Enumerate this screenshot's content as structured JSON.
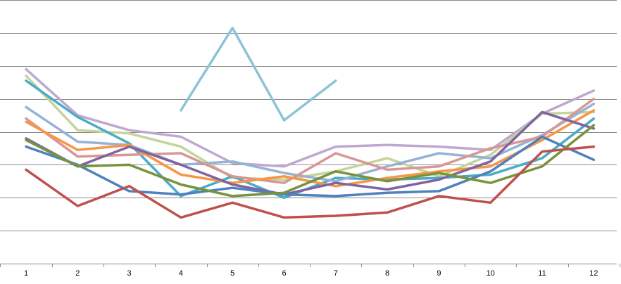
{
  "chart_data": {
    "type": "line",
    "title": "",
    "xlabel": "",
    "ylabel": "",
    "x": [
      "1",
      "2",
      "3",
      "4",
      "5",
      "6",
      "7",
      "8",
      "9",
      "10",
      "11",
      "12"
    ],
    "ylim": [
      0,
      8
    ],
    "grid": true,
    "legend": "none",
    "series": [
      {
        "color": "#bfa8cf",
        "values": [
          5.9,
          4.5,
          4.05,
          3.85,
          3.05,
          2.95,
          3.55,
          3.6,
          3.55,
          3.45,
          4.55,
          5.25
        ]
      },
      {
        "color": "#c3d59a",
        "values": [
          5.7,
          4.05,
          3.95,
          3.55,
          2.6,
          2.55,
          2.8,
          3.2,
          2.65,
          3.3,
          4.55,
          4.6
        ]
      },
      {
        "color": "#4bacc6",
        "values": [
          5.55,
          4.45,
          3.65,
          2.05,
          2.65,
          2.0,
          2.6,
          2.55,
          2.6,
          2.7,
          3.2,
          4.4
        ]
      },
      {
        "color": "#95b3d7",
        "values": [
          4.75,
          3.7,
          3.6,
          3.0,
          3.1,
          2.75,
          2.5,
          2.95,
          3.35,
          3.2,
          3.9,
          4.85
        ]
      },
      {
        "color": "#d99694",
        "values": [
          4.4,
          3.25,
          3.3,
          3.35,
          2.65,
          2.45,
          3.35,
          2.85,
          2.95,
          3.5,
          3.85,
          5.0
        ]
      },
      {
        "color": "#f79646",
        "values": [
          4.3,
          3.45,
          3.6,
          2.7,
          2.45,
          2.65,
          2.35,
          2.6,
          2.8,
          2.95,
          3.75,
          4.65
        ]
      },
      {
        "color": "#8064a2",
        "values": [
          3.8,
          2.95,
          3.55,
          3.0,
          2.4,
          2.1,
          2.45,
          2.25,
          2.55,
          3.1,
          4.6,
          4.1
        ]
      },
      {
        "color": "#4f81bd",
        "values": [
          3.55,
          3.0,
          2.2,
          2.1,
          2.3,
          2.1,
          2.05,
          2.15,
          2.2,
          2.8,
          3.85,
          3.15
        ]
      },
      {
        "color": "#77933c",
        "values": [
          3.75,
          2.95,
          3.0,
          2.4,
          2.05,
          2.15,
          2.8,
          2.5,
          2.75,
          2.45,
          2.95,
          4.2
        ]
      },
      {
        "color": "#c0504d",
        "values": [
          2.85,
          1.75,
          2.35,
          1.4,
          1.85,
          1.4,
          1.45,
          1.55,
          2.05,
          1.85,
          3.4,
          3.55
        ]
      },
      {
        "color": "#8cc4d6",
        "values": [
          null,
          null,
          null,
          4.65,
          7.15,
          4.35,
          5.55,
          null,
          null,
          null,
          null,
          null
        ]
      }
    ]
  }
}
